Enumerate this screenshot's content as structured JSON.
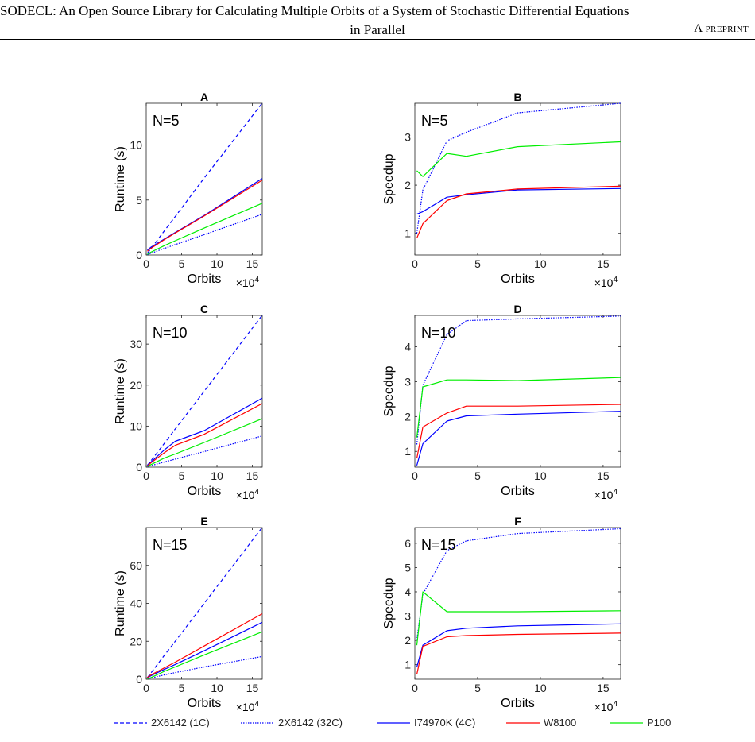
{
  "header": {
    "title_line1": "SODECL: An Open Source Library for Calculating Multiple Orbits of a System of Stochastic Differential Equations",
    "title_line2": "in Parallel",
    "tag": "A preprint"
  },
  "legend": [
    {
      "label": "2X6142 (1C)",
      "color": "#0000ff",
      "style": "dashed"
    },
    {
      "label": "2X6142 (32C)",
      "color": "#0000ff",
      "style": "dotted"
    },
    {
      "label": "I74970K (4C)",
      "color": "#0000ff",
      "style": "solid"
    },
    {
      "label": "W8100",
      "color": "#ff0000",
      "style": "solid"
    },
    {
      "label": "P100",
      "color": "#00ee00",
      "style": "solid"
    }
  ],
  "chart_data": [
    {
      "panel": "A",
      "type": "line",
      "title": "A",
      "annotation": "N=5",
      "xlabel": "Orbits",
      "ylabel": "Runtime (s)",
      "x_multiplier": "×10^4",
      "xlim": [
        0,
        16.4
      ],
      "ylim": [
        0,
        13.8
      ],
      "xticks": [
        0,
        5,
        10,
        15
      ],
      "yticks": [
        0,
        5,
        10
      ],
      "x": [
        0.16,
        0.64,
        2.56,
        4.1,
        8.19,
        16.38
      ],
      "series": [
        {
          "name": "2X6142 (1C)",
          "values": [
            0.15,
            0.55,
            2.2,
            3.5,
            7.0,
            13.8
          ]
        },
        {
          "name": "2X6142 (32C)",
          "values": [
            0.03,
            0.15,
            0.6,
            0.95,
            1.85,
            3.7
          ]
        },
        {
          "name": "I74970K (4C)",
          "values": [
            0.45,
            0.7,
            1.45,
            2.05,
            3.6,
            6.95
          ]
        },
        {
          "name": "W8100",
          "values": [
            0.35,
            0.6,
            1.4,
            2.0,
            3.55,
            6.8
          ]
        },
        {
          "name": "P100",
          "values": [
            0.05,
            0.25,
            0.85,
            1.3,
            2.45,
            4.7
          ]
        }
      ]
    },
    {
      "panel": "B",
      "type": "line",
      "title": "B",
      "annotation": "N=5",
      "xlabel": "Orbits",
      "ylabel": "Speedup",
      "x_multiplier": "×10^4",
      "xlim": [
        0,
        16.4
      ],
      "ylim": [
        0.55,
        3.7
      ],
      "xticks": [
        0,
        5,
        10,
        15
      ],
      "yticks": [
        1,
        2,
        3
      ],
      "x": [
        0.16,
        0.64,
        2.56,
        4.1,
        8.19,
        16.38
      ],
      "series": [
        {
          "name": "2X6142 (32C)",
          "values": [
            1.0,
            1.9,
            2.92,
            3.1,
            3.5,
            3.7
          ]
        },
        {
          "name": "I74970K (4C)",
          "values": [
            1.4,
            1.45,
            1.75,
            1.8,
            1.9,
            1.93
          ]
        },
        {
          "name": "W8100",
          "values": [
            0.9,
            1.2,
            1.68,
            1.82,
            1.92,
            1.98
          ]
        },
        {
          "name": "P100",
          "values": [
            2.3,
            2.18,
            2.66,
            2.6,
            2.8,
            2.9
          ]
        }
      ]
    },
    {
      "panel": "C",
      "type": "line",
      "title": "C",
      "annotation": "N=10",
      "xlabel": "Orbits",
      "ylabel": "Runtime (s)",
      "x_multiplier": "×10^4",
      "xlim": [
        0,
        16.4
      ],
      "ylim": [
        0,
        37
      ],
      "xticks": [
        0,
        5,
        10,
        15
      ],
      "yticks": [
        0,
        10,
        20,
        30
      ],
      "x": [
        0.16,
        0.64,
        2.56,
        4.1,
        8.19,
        16.38
      ],
      "series": [
        {
          "name": "2X6142 (1C)",
          "values": [
            0.4,
            1.5,
            5.8,
            9.3,
            18.5,
            37.0
          ]
        },
        {
          "name": "2X6142 (32C)",
          "values": [
            0.1,
            0.35,
            1.25,
            1.95,
            3.8,
            7.6
          ]
        },
        {
          "name": "I74970K (4C)",
          "values": [
            0.5,
            1.2,
            4.2,
            6.3,
            8.9,
            16.8
          ]
        },
        {
          "name": "W8100",
          "values": [
            0.3,
            1.0,
            3.5,
            5.3,
            8.0,
            15.5
          ]
        },
        {
          "name": "P100",
          "values": [
            0.15,
            0.6,
            2.2,
            3.2,
            6.0,
            11.8
          ]
        }
      ]
    },
    {
      "panel": "D",
      "type": "line",
      "title": "D",
      "annotation": "N=10",
      "xlabel": "Orbits",
      "ylabel": "Speedup",
      "x_multiplier": "×10^4",
      "xlim": [
        0,
        16.4
      ],
      "ylim": [
        0.55,
        4.9
      ],
      "xticks": [
        0,
        5,
        10,
        15
      ],
      "yticks": [
        1,
        2,
        3,
        4
      ],
      "x": [
        0.16,
        0.64,
        2.56,
        4.1,
        8.19,
        16.38
      ],
      "series": [
        {
          "name": "2X6142 (32C)",
          "values": [
            1.2,
            2.9,
            4.35,
            4.75,
            4.8,
            4.88
          ]
        },
        {
          "name": "I74970K (4C)",
          "values": [
            0.6,
            1.22,
            1.87,
            2.02,
            2.07,
            2.15
          ]
        },
        {
          "name": "W8100",
          "values": [
            0.8,
            1.7,
            2.1,
            2.3,
            2.3,
            2.35
          ]
        },
        {
          "name": "P100",
          "values": [
            1.4,
            2.85,
            3.05,
            3.05,
            3.03,
            3.12
          ]
        }
      ]
    },
    {
      "panel": "E",
      "type": "line",
      "title": "E",
      "annotation": "N=15",
      "xlabel": "Orbits",
      "ylabel": "Runtime (s)",
      "x_multiplier": "×10^4",
      "xlim": [
        0,
        16.4
      ],
      "ylim": [
        0,
        80
      ],
      "xticks": [
        0,
        5,
        10,
        15
      ],
      "yticks": [
        0,
        20,
        40,
        60
      ],
      "x": [
        0.16,
        0.64,
        2.56,
        4.1,
        8.19,
        16.38
      ],
      "series": [
        {
          "name": "2X6142 (1C)",
          "values": [
            0.8,
            3.2,
            12.6,
            20.0,
            40.0,
            80.0
          ]
        },
        {
          "name": "2X6142 (32C)",
          "values": [
            0.2,
            0.6,
            2.3,
            3.5,
            6.5,
            12.0
          ]
        },
        {
          "name": "I74970K (4C)",
          "values": [
            0.8,
            1.8,
            5.2,
            7.8,
            15.0,
            30.0
          ]
        },
        {
          "name": "W8100",
          "values": [
            0.9,
            2.2,
            6.0,
            9.0,
            17.5,
            34.5
          ]
        },
        {
          "name": "P100",
          "values": [
            0.2,
            0.8,
            4.2,
            6.5,
            12.8,
            25.0
          ]
        }
      ]
    },
    {
      "panel": "F",
      "type": "line",
      "title": "F",
      "annotation": "N=15",
      "xlabel": "Orbits",
      "ylabel": "Speedup",
      "x_multiplier": "×10^4",
      "xlim": [
        0,
        16.4
      ],
      "ylim": [
        0.4,
        6.65
      ],
      "xticks": [
        0,
        5,
        10,
        15
      ],
      "yticks": [
        1,
        2,
        3,
        4,
        5,
        6
      ],
      "x": [
        0.16,
        0.64,
        2.56,
        4.1,
        8.19,
        16.38
      ],
      "series": [
        {
          "name": "2X6142 (32C)",
          "values": [
            2.0,
            3.9,
            5.7,
            6.1,
            6.4,
            6.6
          ]
        },
        {
          "name": "I74970K (4C)",
          "values": [
            0.9,
            1.8,
            2.4,
            2.5,
            2.6,
            2.68
          ]
        },
        {
          "name": "W8100",
          "values": [
            0.6,
            1.75,
            2.15,
            2.2,
            2.25,
            2.3
          ]
        },
        {
          "name": "P100",
          "values": [
            1.8,
            4.0,
            3.18,
            3.18,
            3.18,
            3.22
          ]
        }
      ]
    }
  ]
}
